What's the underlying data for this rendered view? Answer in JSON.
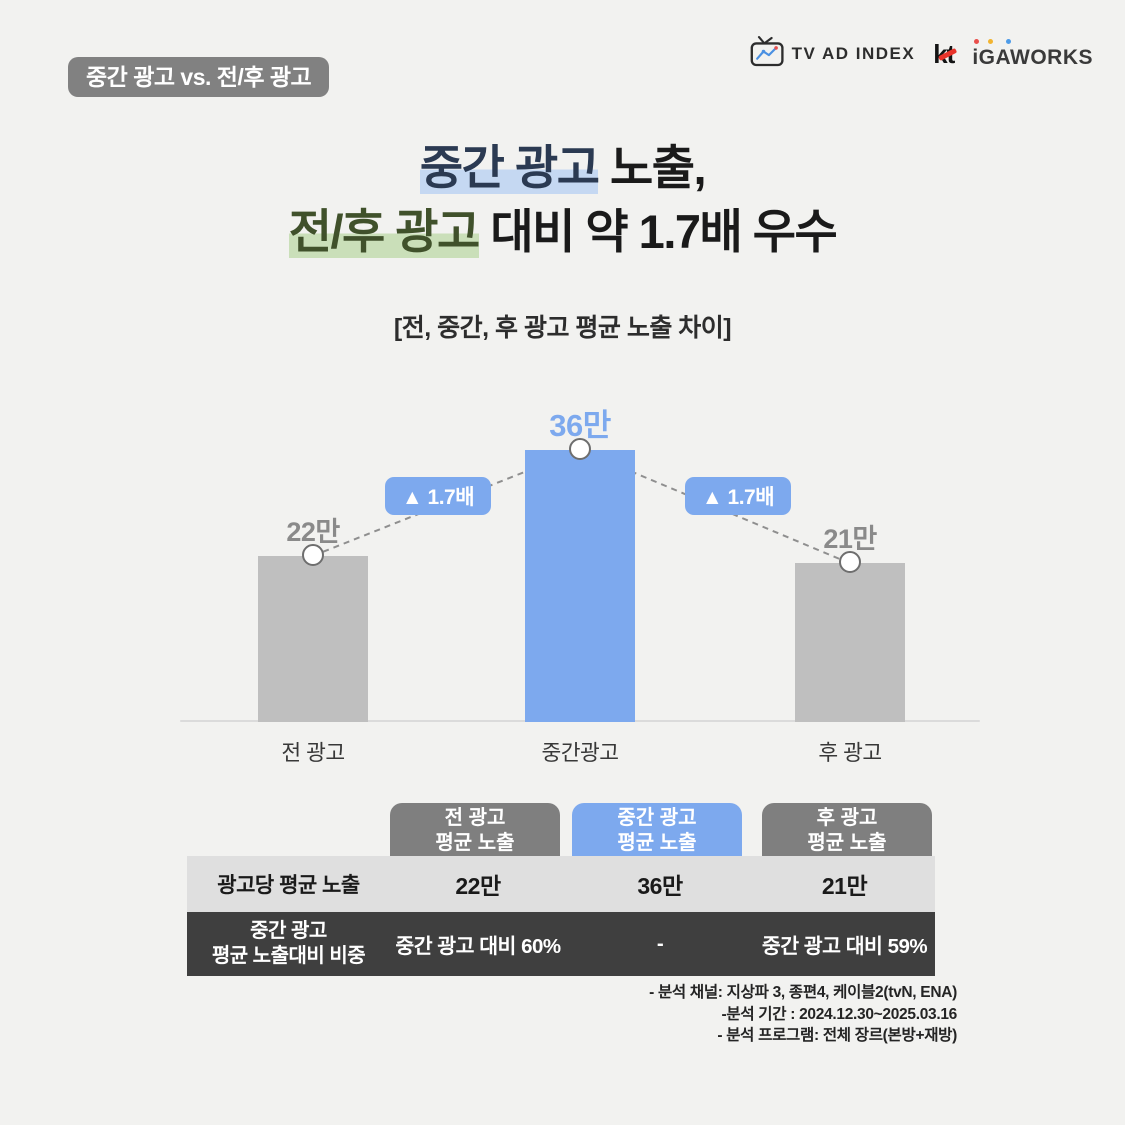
{
  "colors": {
    "background": "#F2F2F0",
    "accent_blue": "#7DA9EE",
    "bar_gray": "#BFBFBF",
    "badge_gray": "#818181",
    "highlight_blue": "#C5D8F2",
    "highlight_green": "#CADFB9",
    "table_row_light": "#DFDFDF",
    "table_row_dark": "#3F3F3F"
  },
  "header": {
    "badge_label": "중간 광고 vs. 전/후 광고",
    "logos": {
      "tv_ad_index": "TV AD INDEX",
      "kt": "kt",
      "igaworks": "iGAWORKS"
    }
  },
  "title": {
    "line1_highlighted": "중간 광고",
    "line1_rest": " 노출,",
    "line2_highlighted": "전/후 광고",
    "line2_rest": " 대비 약 1.7배 우수"
  },
  "subtitle": "[전, 중간, 후 광고 평균 노출 차이]",
  "chart_data": {
    "type": "bar",
    "title": "[전, 중간, 후 광고 평균 노출 차이]",
    "categories": [
      "전 광고",
      "중간광고",
      "후 광고"
    ],
    "values": [
      22,
      36,
      21
    ],
    "unit": "만",
    "value_labels": [
      "22만",
      "36만",
      "21만"
    ],
    "ylim": [
      0,
      36
    ],
    "grid": false,
    "legend": false,
    "bar_colors": [
      "#BFBFBF",
      "#7DA9EE",
      "#BFBFBF"
    ],
    "annotations": [
      {
        "label": "▲ 1.7배",
        "between": [
          "전 광고",
          "중간광고"
        ]
      },
      {
        "label": "▲ 1.7배",
        "between": [
          "중간광고",
          "후 광고"
        ]
      }
    ]
  },
  "table": {
    "column_headers": [
      {
        "line1": "전 광고",
        "line2": "평균 노출",
        "color": "#7F7F7F"
      },
      {
        "line1": "중간 광고",
        "line2": "평균 노출",
        "color": "#7DA9EE"
      },
      {
        "line1": "후 광고",
        "line2": "평균 노출",
        "color": "#7F7F7F"
      }
    ],
    "rows": [
      {
        "label": "광고당 평균 노출",
        "values": [
          "22만",
          "36만",
          "21만"
        ]
      },
      {
        "label_line1": "중간 광고",
        "label_line2": "평균 노출대비 비중",
        "values": [
          "중간 광고 대비 60%",
          "-",
          "중간 광고 대비 59%"
        ]
      }
    ]
  },
  "footnotes": [
    "- 분석 채널: 지상파 3, 종편4, 케이블2(tvN, ENA)",
    "-분석 기간 : 2024.12.30~2025.03.16",
    "- 분석 프로그램: 전체 장르(본방+재방)"
  ]
}
